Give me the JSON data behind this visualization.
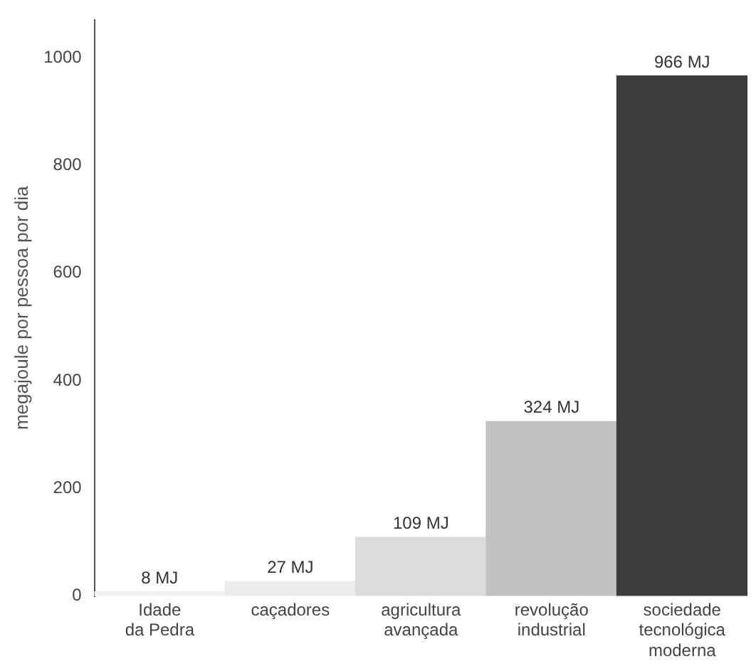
{
  "chart_data": {
    "type": "bar",
    "ylabel": "megajoule por pessoa por dia",
    "categories": [
      "Idade\nda Pedra",
      "caçadores",
      "agricultura\navançada",
      "revolução\nindustrial",
      "sociedade\ntecnológica\nmoderna"
    ],
    "values": [
      8,
      27,
      109,
      324,
      966
    ],
    "colors": [
      "#f2f2f2",
      "#ececec",
      "#dcdcdc",
      "#c2c2c2",
      "#3c3c3c"
    ],
    "value_labels": [
      "8 MJ",
      "27 MJ",
      "109 MJ",
      "324 MJ",
      "966 MJ"
    ],
    "ylim": [
      0,
      1070
    ],
    "yticks": [
      0,
      200,
      400,
      600,
      800,
      1000
    ],
    "grid": false,
    "legend": false
  }
}
